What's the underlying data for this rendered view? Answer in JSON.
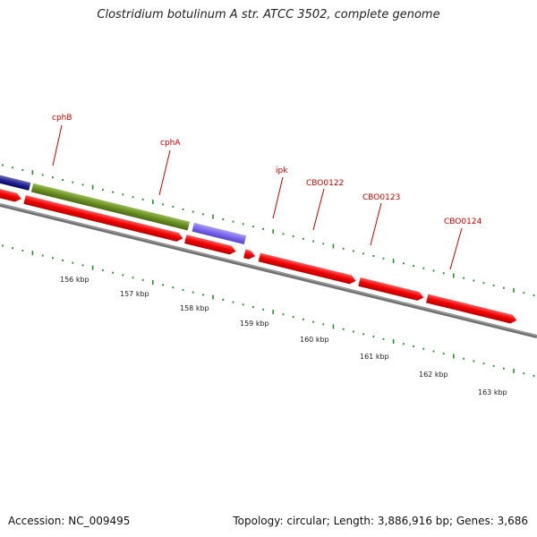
{
  "title": "Clostridium botulinum A str. ATCC 3502, complete genome",
  "footer": {
    "accession": "Accession: NC_009495",
    "stats": "Topology: circular; Length: 3,886,916 bp; Genes: 3,686"
  },
  "colors": {
    "backbone": "#7d7d7d",
    "cds": "#ff0000",
    "cphB": "#1a1a8c",
    "cphA": "#6b8e23",
    "ipk": "#7b68ee",
    "gc_ticks": "#2e8b2e",
    "label": "#cc0000"
  },
  "gene_labels": [
    {
      "id": "cphB",
      "text": "cphB"
    },
    {
      "id": "cphA",
      "text": "cphA"
    },
    {
      "id": "ipk",
      "text": "ipk"
    },
    {
      "id": "CBO0122",
      "text": "CBO0122"
    },
    {
      "id": "CBO0123",
      "text": "CBO0123"
    },
    {
      "id": "CBO0124",
      "text": "CBO0124"
    }
  ],
  "scale_labels": [
    "156 kbp",
    "157 kbp",
    "158 kbp",
    "159 kbp",
    "160 kbp",
    "161 kbp",
    "162 kbp",
    "163 kbp"
  ]
}
